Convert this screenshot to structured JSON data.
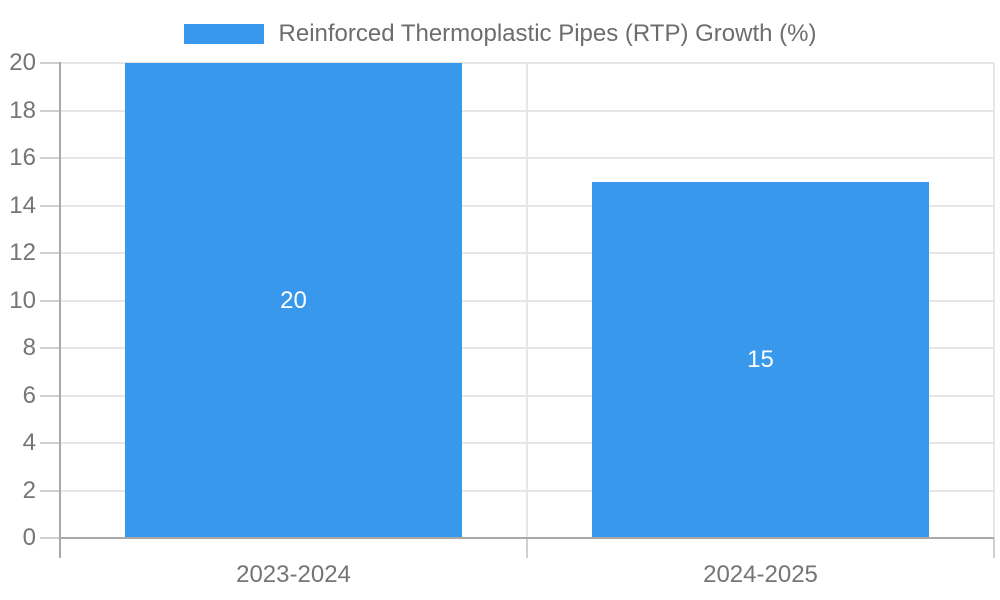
{
  "chart_data": {
    "type": "bar",
    "title": "Reinforced Thermoplastic Pipes (RTP) Growth (%)",
    "categories": [
      "2023-2024",
      "2024-2025"
    ],
    "series": [
      {
        "name": "Reinforced Thermoplastic Pipes (RTP) Growth (%)",
        "values": [
          20,
          15
        ]
      }
    ],
    "value_labels": [
      "20",
      "15"
    ],
    "xlabel": "",
    "ylabel": "",
    "ylim": [
      0,
      20
    ],
    "ytick_step": 2,
    "yticks": [
      0,
      2,
      4,
      6,
      8,
      10,
      12,
      14,
      16,
      18,
      20
    ],
    "grid": true,
    "legend_position": "top-center",
    "colors": {
      "bar": "#3899ec",
      "datalabel": "#ffffff",
      "legend_text": "#6d6d6d",
      "axis_text": "#757575",
      "gridline": "#e6e6e6",
      "axis_line": "#a9a9a9",
      "tick": "#cfcfcf",
      "background": "#ffffff"
    }
  }
}
